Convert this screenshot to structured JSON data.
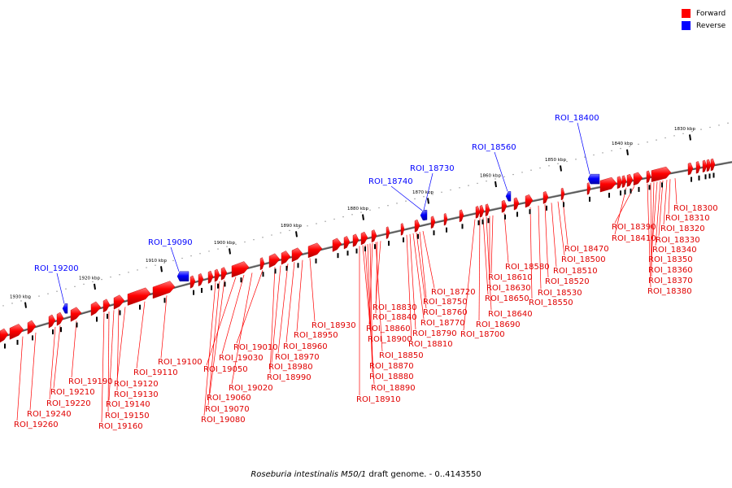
{
  "legend": {
    "forward": {
      "label": "Forward",
      "color": "#ff0000"
    },
    "reverse": {
      "label": "Reverse",
      "color": "#0000ff"
    }
  },
  "caption": {
    "organism": "Roseburia intestinalis M50/1",
    "rest": " draft genome. - 0..4143550"
  },
  "ticks": [
    "1830 kbp",
    "1840 kbp",
    "1850 kbp",
    "1860 kbp",
    "1870 kbp",
    "1880 kbp",
    "1890 kbp",
    "1900 kbp",
    "1910 kbp",
    "1920 kbp",
    "1930 kbp"
  ],
  "reverse_labels": [
    "ROI_18400",
    "ROI_18560",
    "ROI_18730",
    "ROI_18740",
    "ROI_19090",
    "ROI_19200"
  ],
  "forward_labels": [
    "ROI_18300",
    "ROI_18310",
    "ROI_18320",
    "ROI_18330",
    "ROI_18340",
    "ROI_18350",
    "ROI_18360",
    "ROI_18370",
    "ROI_18380",
    "ROI_18390",
    "ROI_18410",
    "ROI_18470",
    "ROI_18500",
    "ROI_18510",
    "ROI_18520",
    "ROI_18530",
    "ROI_18550",
    "ROI_18580",
    "ROI_18610",
    "ROI_18630",
    "ROI_18640",
    "ROI_18650",
    "ROI_18690",
    "ROI_18700",
    "ROI_18720",
    "ROI_18750",
    "ROI_18760",
    "ROI_18770",
    "ROI_18790",
    "ROI_18810",
    "ROI_18830",
    "ROI_18840",
    "ROI_18850",
    "ROI_18860",
    "ROI_18870",
    "ROI_18880",
    "ROI_18890",
    "ROI_18900",
    "ROI_18910",
    "ROI_18930",
    "ROI_18950",
    "ROI_18960",
    "ROI_18970",
    "ROI_18980",
    "ROI_18990",
    "ROI_19010",
    "ROI_19020",
    "ROI_19030",
    "ROI_19050",
    "ROI_19060",
    "ROI_19070",
    "ROI_19080",
    "ROI_19100",
    "ROI_19110",
    "ROI_19120",
    "ROI_19130",
    "ROI_19140",
    "ROI_19150",
    "ROI_19160",
    "ROI_19190",
    "ROI_19210",
    "ROI_19220",
    "ROI_19240",
    "ROI_19260"
  ]
}
